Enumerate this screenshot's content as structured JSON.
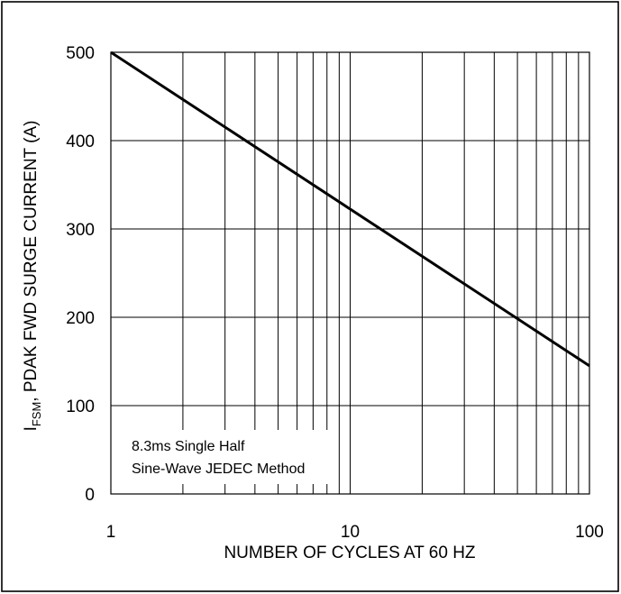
{
  "chart_data": {
    "type": "line",
    "title": "",
    "xlabel": "NUMBER OF CYCLES AT 60 HZ",
    "ylabel": {
      "main": "I",
      "sub": "FSM",
      "rest": ", PDAK FWD SURGE CURRENT (A)"
    },
    "x_scale": "log",
    "xlim": [
      1,
      100
    ],
    "ylim": [
      0,
      500
    ],
    "x_ticks": [
      1,
      10,
      100
    ],
    "x_tick_labels": [
      "1",
      "10",
      "100"
    ],
    "y_ticks": [
      0,
      100,
      200,
      300,
      400,
      500
    ],
    "y_tick_labels": [
      "0",
      "100",
      "200",
      "300",
      "400",
      "500"
    ],
    "grid": true,
    "annotation": [
      "8.3ms Single Half",
      "Sine-Wave JEDEC Method"
    ],
    "series": [
      {
        "x": [
          1,
          100
        ],
        "y": [
          500,
          145
        ]
      }
    ],
    "colors": {
      "line": "#000000",
      "grid": "#000000",
      "frame": "#000000"
    }
  }
}
